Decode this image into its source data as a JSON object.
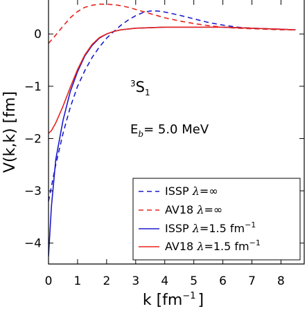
{
  "chart_data": {
    "type": "line",
    "xlabel": "k [fm",
    "xlabel_sup": "−1",
    "xlabel_tail": "]",
    "ylabel": "V(k,k) [fm]",
    "xlim": [
      0,
      8.8
    ],
    "ylim": [
      -4.4,
      0.65
    ],
    "x_ticks": [
      0,
      1,
      2,
      3,
      4,
      5,
      6,
      7,
      8
    ],
    "y_ticks": [
      -4,
      -3,
      -2,
      -1,
      0
    ],
    "x_tick_labels": [
      "0",
      "1",
      "2",
      "3",
      "4",
      "5",
      "6",
      "7",
      "8"
    ],
    "y_tick_labels": [
      "−4",
      "−3",
      "−2",
      "−1",
      "0"
    ],
    "annotation_wave": {
      "pre": "3",
      "main": "S",
      "sub": "1"
    },
    "annotation_energy": {
      "main": "E",
      "sub": "b",
      "rest": "= 5.0 MeV"
    },
    "legend_position": "bottom-right",
    "series": [
      {
        "name": "ISSP",
        "lambda": "λ",
        "lambda_value": "=∞",
        "unit": "",
        "unit_sup": "",
        "color": "#1a1acc",
        "dash": "dashed",
        "x": [
          0.0,
          0.25,
          0.5,
          0.75,
          1.0,
          1.25,
          1.5,
          1.75,
          2.0,
          2.25,
          2.5,
          2.75,
          3.0,
          3.25,
          3.5,
          3.75,
          4.0,
          4.5,
          5.0,
          5.5,
          6.0,
          6.5,
          7.0,
          7.5,
          8.0,
          8.5
        ],
        "y": [
          -3.2,
          -2.5,
          -1.9,
          -1.4,
          -1.0,
          -0.7,
          -0.45,
          -0.25,
          -0.08,
          0.05,
          0.17,
          0.27,
          0.35,
          0.41,
          0.44,
          0.44,
          0.42,
          0.36,
          0.29,
          0.22,
          0.17,
          0.13,
          0.11,
          0.1,
          0.09,
          0.08
        ]
      },
      {
        "name": "AV18",
        "lambda": "λ",
        "lambda_value": "=∞",
        "unit": "",
        "unit_sup": "",
        "color": "#e8221a",
        "dash": "dashed",
        "x": [
          0.0,
          0.25,
          0.5,
          0.75,
          1.0,
          1.25,
          1.5,
          1.75,
          2.0,
          2.25,
          2.5,
          2.75,
          3.0,
          3.25,
          3.5,
          3.75,
          4.0,
          4.5,
          5.0,
          5.5,
          6.0,
          6.5,
          7.0,
          7.5,
          8.0,
          8.5
        ],
        "y": [
          -0.18,
          -0.02,
          0.15,
          0.31,
          0.43,
          0.51,
          0.55,
          0.57,
          0.57,
          0.56,
          0.54,
          0.51,
          0.47,
          0.43,
          0.39,
          0.35,
          0.31,
          0.25,
          0.2,
          0.16,
          0.13,
          0.11,
          0.1,
          0.09,
          0.08,
          0.08
        ]
      },
      {
        "name": "ISSP",
        "lambda": "λ",
        "lambda_value": "=1.5",
        "unit": "fm",
        "unit_sup": "−1",
        "color": "#1a1acc",
        "dash": "solid",
        "x": [
          0.0,
          0.1,
          0.25,
          0.5,
          0.75,
          1.0,
          1.25,
          1.5,
          1.75,
          2.0,
          2.25,
          2.5,
          3.0,
          3.5,
          4.0,
          4.5,
          5.0,
          5.5,
          6.0,
          6.5,
          7.0,
          7.5,
          8.0,
          8.5
        ],
        "y": [
          -4.25,
          -3.3,
          -2.4,
          -1.65,
          -1.1,
          -0.72,
          -0.42,
          -0.22,
          -0.08,
          0.0,
          0.05,
          0.08,
          0.11,
          0.12,
          0.13,
          0.13,
          0.13,
          0.13,
          0.13,
          0.12,
          0.11,
          0.1,
          0.09,
          0.08
        ]
      },
      {
        "name": "AV18",
        "lambda": "λ",
        "lambda_value": "=1.5",
        "unit": "fm",
        "unit_sup": "−1",
        "color": "#e8221a",
        "dash": "solid",
        "x": [
          0.0,
          0.1,
          0.25,
          0.5,
          0.75,
          1.0,
          1.25,
          1.5,
          1.75,
          2.0,
          2.25,
          2.5,
          3.0,
          3.5,
          4.0,
          4.5,
          5.0,
          5.5,
          6.0,
          6.5,
          7.0,
          7.5,
          8.0,
          8.5
        ],
        "y": [
          -1.9,
          -1.85,
          -1.7,
          -1.38,
          -1.02,
          -0.68,
          -0.4,
          -0.2,
          -0.07,
          0.0,
          0.05,
          0.08,
          0.11,
          0.12,
          0.13,
          0.13,
          0.13,
          0.13,
          0.13,
          0.12,
          0.11,
          0.1,
          0.09,
          0.08
        ]
      }
    ]
  }
}
